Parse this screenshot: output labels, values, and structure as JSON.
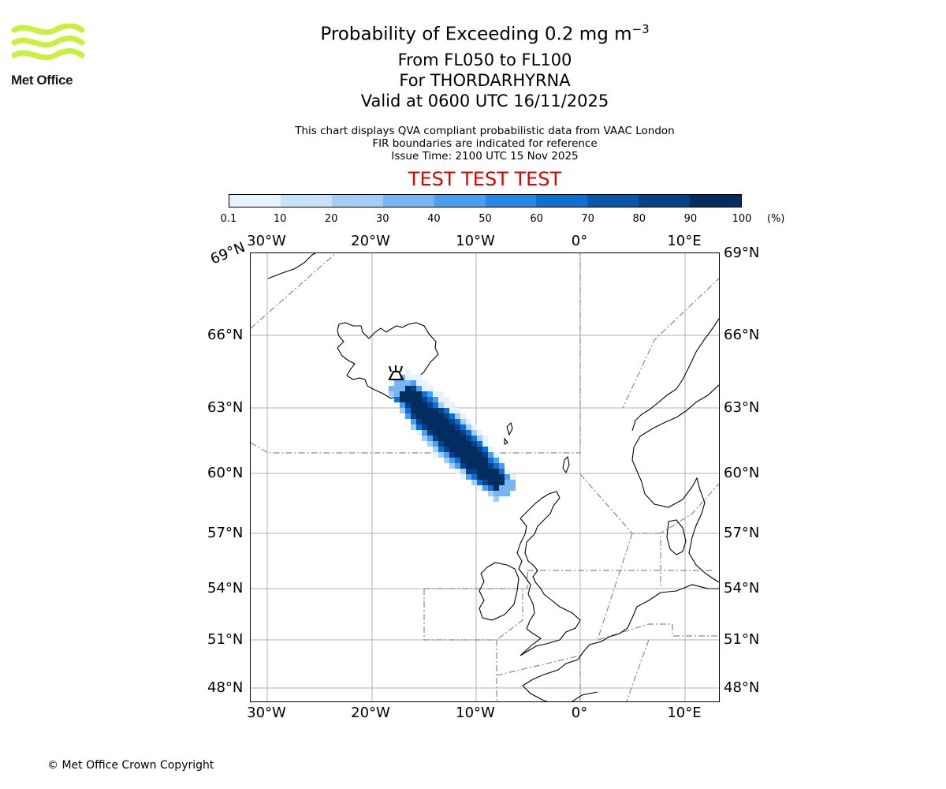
{
  "logo": {
    "text": "Met Office",
    "color": "#c8f03c",
    "icon": "met-office-wave-icon"
  },
  "title": {
    "main": "Probability of Exceeding 0.2 mg m",
    "main_exponent": "−3",
    "levels": "From FL050 to FL100",
    "volcano": "For THORDARHYRNA",
    "valid": "Valid at 0600 UTC 16/11/2025"
  },
  "subtitle": {
    "line1": "This chart displays QVA compliant probabilistic data from VAAC London",
    "line2": "FIR boundaries are indicated for reference",
    "line3": "Issue Time: 2100 UTC 15 Nov 2025"
  },
  "test_banner": "TEST TEST TEST",
  "colorbar": {
    "ticks": [
      "0.1",
      "10",
      "20",
      "30",
      "40",
      "50",
      "60",
      "70",
      "80",
      "90",
      "100"
    ],
    "unit": "(%)",
    "colors": [
      "#e6f2fd",
      "#c6e2fa",
      "#a2cdf6",
      "#76b5f2",
      "#4a9ef0",
      "#2388ec",
      "#0c6fd6",
      "#0757b0",
      "#054287",
      "#032d5e"
    ]
  },
  "map": {
    "lon_labels": [
      "30°W",
      "20°W",
      "10°W",
      "0°",
      "10°E"
    ],
    "lat_labels": [
      "69°N",
      "66°N",
      "63°N",
      "60°N",
      "57°N",
      "54°N",
      "51°N",
      "48°N"
    ],
    "volcano_marker_icon": "volcano-marker-icon",
    "plume_color": "#032d5e"
  },
  "footer": {
    "copyright": "© Met Office Crown Copyright"
  }
}
